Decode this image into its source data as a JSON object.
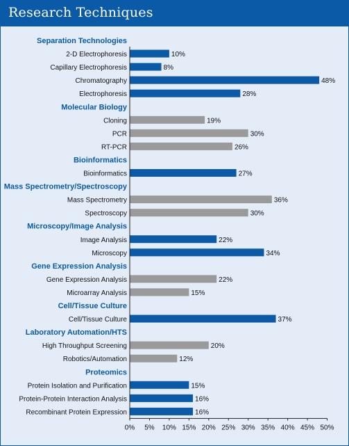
{
  "page": {
    "title": "Research Techniques"
  },
  "colors": {
    "header": "#0b5aa8",
    "panel": "#e3ecf7",
    "bar_blue": "#0b5aa8",
    "bar_gray": "#9a9a9a",
    "category": "#0b5aa8"
  },
  "chart_data": {
    "type": "bar",
    "orientation": "horizontal",
    "title": "Research Techniques",
    "xlim": [
      0,
      50
    ],
    "x_ticks": [
      "0%",
      "5%",
      "10%",
      "15%",
      "20%",
      "25%",
      "30%",
      "35%",
      "40%",
      "45%",
      "50%"
    ],
    "value_suffix": "%",
    "grid": false,
    "groups": [
      {
        "name": "Separation Technologies",
        "color": "blue",
        "items": [
          {
            "label": "2-D Electrophoresis",
            "value": 10
          },
          {
            "label": "Capillary Electrophoresis",
            "value": 8
          },
          {
            "label": "Chromatography",
            "value": 48
          },
          {
            "label": "Electrophoresis",
            "value": 28
          }
        ]
      },
      {
        "name": "Molecular Biology",
        "color": "gray",
        "items": [
          {
            "label": "Cloning",
            "value": 19
          },
          {
            "label": "PCR",
            "value": 30
          },
          {
            "label": "RT-PCR",
            "value": 26
          }
        ]
      },
      {
        "name": "Bioinformatics",
        "color": "blue",
        "items": [
          {
            "label": "Bioinformatics",
            "value": 27
          }
        ]
      },
      {
        "name": "Mass Spectrometry/Spectroscopy",
        "color": "gray",
        "items": [
          {
            "label": "Mass Spectrometry",
            "value": 36
          },
          {
            "label": "Spectroscopy",
            "value": 30
          }
        ]
      },
      {
        "name": "Microscopy/Image Analysis",
        "color": "blue",
        "items": [
          {
            "label": "Image Analysis",
            "value": 22
          },
          {
            "label": "Microscopy",
            "value": 34
          }
        ]
      },
      {
        "name": "Gene Expression Analysis",
        "color": "gray",
        "items": [
          {
            "label": "Gene Expression Analysis",
            "value": 22
          },
          {
            "label": "Microarray Analysis",
            "value": 15
          }
        ]
      },
      {
        "name": "Cell/Tissue Culture",
        "color": "blue",
        "items": [
          {
            "label": "Cell/Tissue Culture",
            "value": 37
          }
        ]
      },
      {
        "name": "Laboratory Automation/HTS",
        "color": "gray",
        "items": [
          {
            "label": "High Throughput Screening",
            "value": 20
          },
          {
            "label": "Robotics/Automation",
            "value": 12
          }
        ]
      },
      {
        "name": "Proteomics",
        "color": "blue",
        "items": [
          {
            "label": "Protein Isolation and Purification",
            "value": 15
          },
          {
            "label": "Protein-Protein Interaction Analysis",
            "value": 16
          },
          {
            "label": "Recombinant Protein Expression",
            "value": 16
          }
        ]
      }
    ]
  }
}
